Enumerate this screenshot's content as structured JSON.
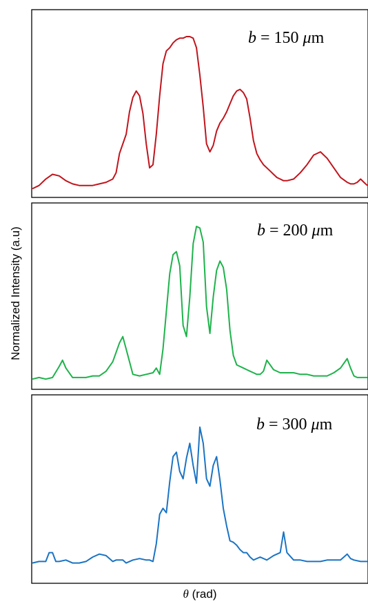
{
  "chart_data": [
    {
      "type": "line",
      "annotation": {
        "var": "b",
        "eq": " = 150 ",
        "unit_mu": "μ",
        "unit_m": "m"
      },
      "color": "#c0141c",
      "xlim": [
        0,
        100
      ],
      "ylim": [
        0,
        1
      ],
      "x": [
        0,
        2,
        4,
        6,
        8,
        10,
        12,
        14,
        16,
        18,
        20,
        22,
        24,
        25,
        26,
        28,
        29,
        30,
        31,
        32,
        33,
        34,
        35,
        36,
        37,
        38,
        39,
        40,
        41,
        42,
        43,
        44,
        45,
        46,
        47,
        48,
        49,
        50,
        51,
        52,
        53,
        54,
        55,
        56,
        57,
        58,
        59,
        60,
        61,
        62,
        63,
        64,
        65,
        66,
        67,
        68,
        69,
        70,
        71,
        72,
        73,
        74,
        75,
        76,
        78,
        80,
        82,
        84,
        86,
        88,
        90,
        92,
        94,
        95,
        96,
        97,
        98,
        99,
        100
      ],
      "series": [
        {
          "values": [
            0.02,
            0.04,
            0.08,
            0.11,
            0.1,
            0.07,
            0.05,
            0.04,
            0.04,
            0.04,
            0.05,
            0.06,
            0.08,
            0.12,
            0.24,
            0.36,
            0.5,
            0.59,
            0.63,
            0.6,
            0.49,
            0.3,
            0.15,
            0.17,
            0.36,
            0.6,
            0.8,
            0.88,
            0.9,
            0.93,
            0.95,
            0.96,
            0.96,
            0.97,
            0.97,
            0.96,
            0.9,
            0.73,
            0.53,
            0.3,
            0.25,
            0.29,
            0.38,
            0.43,
            0.46,
            0.5,
            0.55,
            0.6,
            0.63,
            0.64,
            0.62,
            0.58,
            0.46,
            0.32,
            0.24,
            0.2,
            0.17,
            0.15,
            0.13,
            0.11,
            0.09,
            0.08,
            0.07,
            0.07,
            0.08,
            0.12,
            0.17,
            0.23,
            0.25,
            0.21,
            0.15,
            0.09,
            0.06,
            0.05,
            0.05,
            0.06,
            0.08,
            0.06,
            0.04
          ]
        }
      ]
    },
    {
      "type": "line",
      "annotation": {
        "var": "b",
        "eq": " = 200 ",
        "unit_mu": "μ",
        "unit_m": "m"
      },
      "color": "#1db24a",
      "xlim": [
        0,
        100
      ],
      "ylim": [
        0,
        1
      ],
      "x": [
        0,
        2,
        4,
        6,
        8,
        9,
        10,
        12,
        14,
        16,
        18,
        20,
        22,
        24,
        25,
        26,
        27,
        28,
        30,
        32,
        34,
        36,
        37,
        38,
        39,
        40,
        41,
        42,
        43,
        44,
        45,
        46,
        47,
        48,
        49,
        50,
        51,
        52,
        53,
        54,
        55,
        56,
        57,
        58,
        59,
        60,
        61,
        62,
        63,
        64,
        65,
        66,
        67,
        68,
        69,
        70,
        72,
        74,
        76,
        78,
        80,
        82,
        84,
        86,
        88,
        90,
        92,
        94,
        95,
        96,
        97,
        98,
        100
      ],
      "series": [
        {
          "values": [
            0.03,
            0.04,
            0.03,
            0.04,
            0.11,
            0.15,
            0.1,
            0.04,
            0.04,
            0.04,
            0.05,
            0.05,
            0.08,
            0.14,
            0.2,
            0.26,
            0.3,
            0.22,
            0.06,
            0.05,
            0.06,
            0.07,
            0.1,
            0.06,
            0.22,
            0.46,
            0.7,
            0.82,
            0.84,
            0.75,
            0.37,
            0.3,
            0.55,
            0.89,
            1.0,
            0.99,
            0.9,
            0.49,
            0.32,
            0.55,
            0.72,
            0.78,
            0.74,
            0.6,
            0.34,
            0.18,
            0.12,
            0.11,
            0.1,
            0.09,
            0.08,
            0.07,
            0.06,
            0.06,
            0.08,
            0.15,
            0.09,
            0.07,
            0.07,
            0.07,
            0.06,
            0.06,
            0.05,
            0.05,
            0.05,
            0.07,
            0.1,
            0.16,
            0.1,
            0.05,
            0.04,
            0.04,
            0.04
          ]
        }
      ]
    },
    {
      "type": "line",
      "annotation": {
        "var": "b",
        "eq": " = 300 ",
        "unit_mu": "μ",
        "unit_m": "m"
      },
      "color": "#1a73c3",
      "xlim": [
        0,
        100
      ],
      "ylim": [
        0,
        1
      ],
      "x": [
        0,
        2,
        4,
        5,
        6,
        7,
        8,
        10,
        12,
        14,
        16,
        18,
        20,
        22,
        24,
        25,
        26,
        27,
        28,
        30,
        32,
        34,
        35,
        36,
        37,
        38,
        39,
        40,
        41,
        42,
        43,
        44,
        45,
        46,
        47,
        48,
        49,
        50,
        51,
        52,
        53,
        54,
        55,
        56,
        57,
        58,
        59,
        60,
        61,
        62,
        63,
        64,
        65,
        66,
        68,
        70,
        72,
        74,
        75,
        76,
        78,
        80,
        82,
        84,
        86,
        88,
        90,
        92,
        94,
        95,
        96,
        98,
        100
      ],
      "series": [
        {
          "values": [
            0.03,
            0.04,
            0.04,
            0.1,
            0.1,
            0.04,
            0.04,
            0.05,
            0.03,
            0.03,
            0.04,
            0.07,
            0.09,
            0.08,
            0.04,
            0.05,
            0.05,
            0.05,
            0.03,
            0.05,
            0.06,
            0.05,
            0.05,
            0.04,
            0.16,
            0.36,
            0.4,
            0.37,
            0.58,
            0.75,
            0.78,
            0.65,
            0.6,
            0.74,
            0.84,
            0.69,
            0.57,
            0.95,
            0.84,
            0.6,
            0.55,
            0.69,
            0.75,
            0.59,
            0.4,
            0.28,
            0.18,
            0.17,
            0.15,
            0.12,
            0.1,
            0.1,
            0.07,
            0.05,
            0.07,
            0.05,
            0.08,
            0.1,
            0.24,
            0.1,
            0.05,
            0.05,
            0.04,
            0.04,
            0.04,
            0.05,
            0.05,
            0.05,
            0.09,
            0.06,
            0.05,
            0.04,
            0.04
          ]
        }
      ]
    }
  ],
  "axes": {
    "ylabel": "Normalized Intensity (a.u)",
    "xlabel_symbol": "θ",
    "xlabel_unit": " (rad)"
  }
}
